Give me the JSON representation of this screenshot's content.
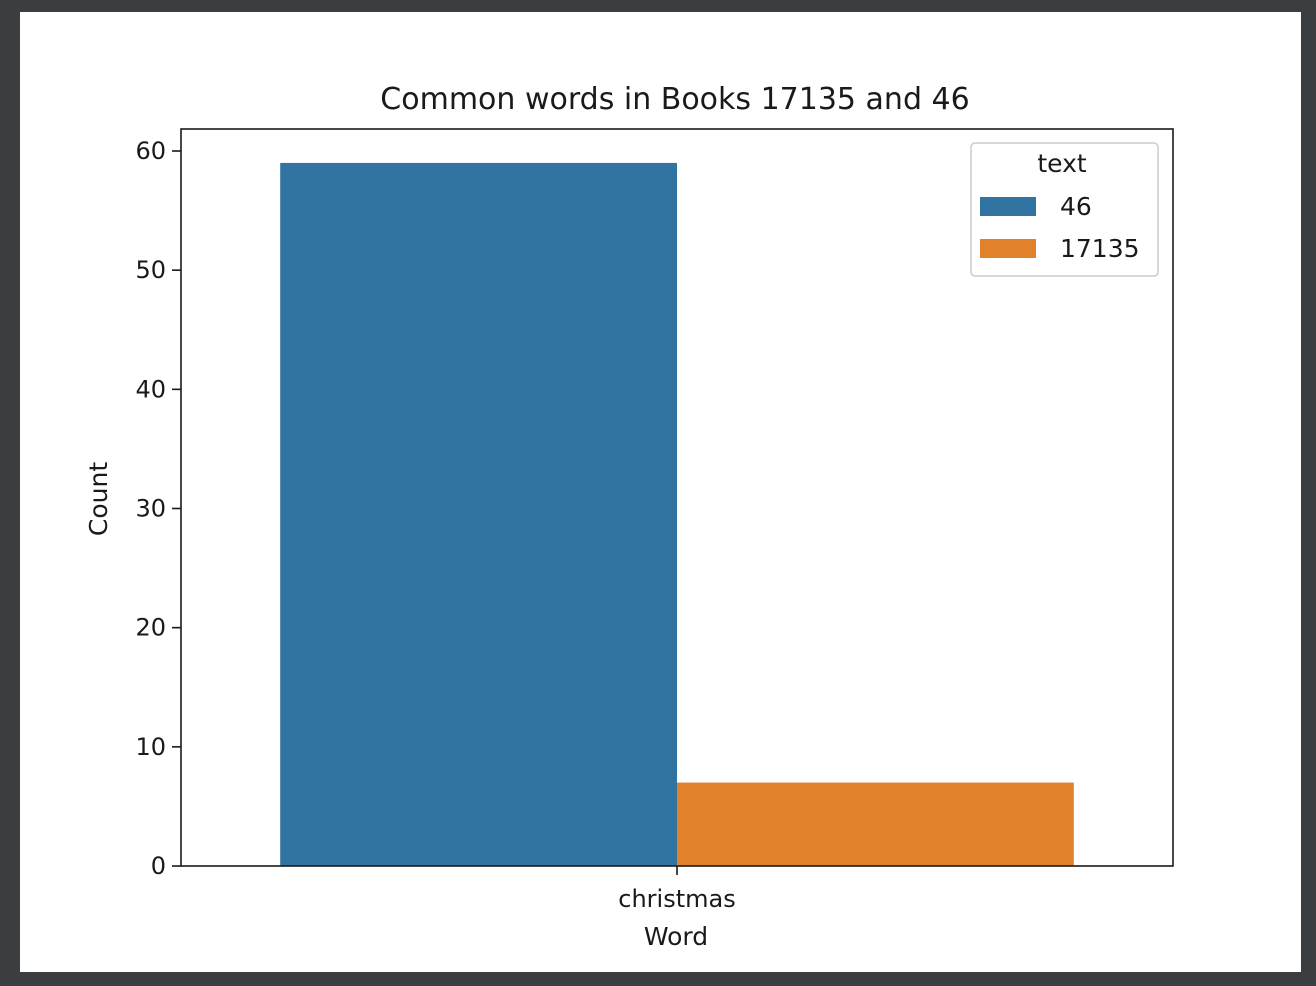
{
  "chart_data": {
    "type": "bar",
    "title": "Common words in Books 17135 and 46",
    "xlabel": "Word",
    "ylabel": "Count",
    "categories": [
      "christmas"
    ],
    "series": [
      {
        "name": "46",
        "values": [
          59
        ],
        "color": "#3274a1"
      },
      {
        "name": "17135",
        "values": [
          7
        ],
        "color": "#e1812c"
      }
    ],
    "ylim": [
      0,
      62
    ],
    "yticks": [
      0,
      10,
      20,
      30,
      40,
      50,
      60
    ],
    "legend": {
      "title": "text",
      "placement": "top-right"
    },
    "grid": false
  }
}
